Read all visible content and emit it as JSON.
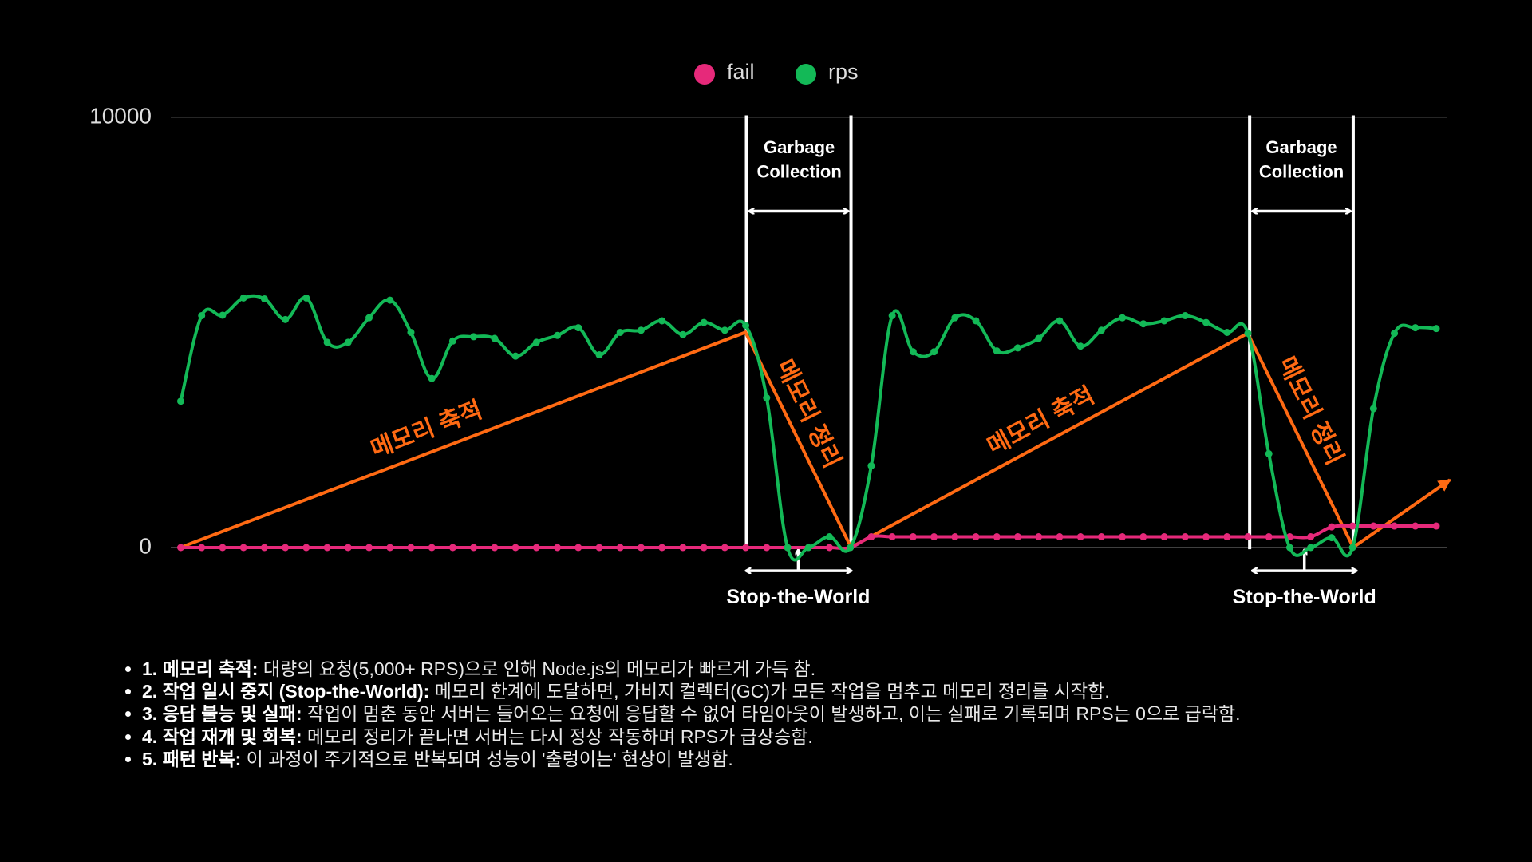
{
  "chart_data": {
    "type": "line",
    "categories": [
      null,
      null,
      null,
      null,
      null,
      null,
      null,
      null,
      null,
      null,
      null,
      null,
      null,
      null,
      null,
      null,
      null,
      null,
      null,
      null,
      null,
      null,
      null,
      null,
      null,
      null,
      null,
      null,
      null,
      null,
      null,
      null,
      null,
      null,
      null,
      null,
      null,
      null,
      null,
      null,
      null,
      null,
      null,
      null,
      null,
      null,
      null,
      null,
      null,
      null,
      null,
      null,
      null,
      null,
      null,
      null,
      null,
      null,
      null,
      null,
      null
    ],
    "series": [
      {
        "name": "fail",
        "color": "#e6297a",
        "values": [
          0,
          0,
          0,
          0,
          0,
          0,
          0,
          0,
          0,
          0,
          0,
          0,
          0,
          0,
          0,
          0,
          0,
          0,
          0,
          0,
          0,
          0,
          0,
          0,
          0,
          0,
          0,
          0,
          0,
          0,
          0,
          0,
          0,
          250,
          250,
          250,
          250,
          250,
          250,
          250,
          250,
          250,
          250,
          250,
          250,
          250,
          250,
          250,
          250,
          250,
          250,
          250,
          250,
          250,
          250,
          480,
          500,
          500,
          500,
          500,
          500
        ]
      },
      {
        "name": "rps",
        "color": "#13b957",
        "values": [
          3400,
          5390,
          5400,
          5800,
          5780,
          5300,
          5800,
          4770,
          4770,
          5340,
          5750,
          5000,
          3930,
          4800,
          4900,
          4860,
          4450,
          4770,
          4930,
          5110,
          4480,
          5000,
          5050,
          5270,
          4950,
          5230,
          5050,
          5160,
          3480,
          0,
          0,
          250,
          0,
          1900,
          5390,
          4550,
          4550,
          5340,
          5270,
          4570,
          4640,
          4860,
          5270,
          4680,
          5050,
          5340,
          5200,
          5270,
          5390,
          5230,
          5000,
          4980,
          2180,
          0,
          0,
          230,
          0,
          3230,
          4980,
          5110,
          5090
        ]
      }
    ],
    "ylim": [
      0,
      10000
    ],
    "yticks": [
      0,
      10000
    ],
    "grid": true,
    "annotations": [
      "메모리 축적",
      "메모리 정리",
      "메모리 축적",
      "메모리 정리",
      "Garbage",
      "Collection",
      "Garbage",
      "Collection",
      "Stop-the-World",
      "Stop-the-World"
    ]
  },
  "notes": [
    {
      "label": "1. 메모리 축적:",
      "text": "대량의 요청(5,000+ RPS)으로 인해 Node.js의 메모리가 빠르게 가득 참."
    },
    {
      "label": "2. 작업 일시 중지 (Stop-the-World):",
      "text": "메모리 한계에 도달하면, 가비지 컬렉터(GC)가 모든 작업을 멈추고 메모리 정리를 시작함."
    },
    {
      "label": "3. 응답 불능 및 실패:",
      "text": "작업이 멈춘 동안 서버는 들어오는 요청에 응답할 수 없어 타임아웃이 발생하고, 이는 실패로 기록되며 RPS는 0으로 급락함."
    },
    {
      "label": "4. 작업 재개 및 회복:",
      "text": "메모리 정리가 끝나면 서버는 다시 정상 작동하며 RPS가 급상승함."
    },
    {
      "label": "5. 패턴 반복:",
      "text": "이 과정이 주기적으로 반복되며 성능이 '출렁이는' 현상이 발생함."
    }
  ]
}
